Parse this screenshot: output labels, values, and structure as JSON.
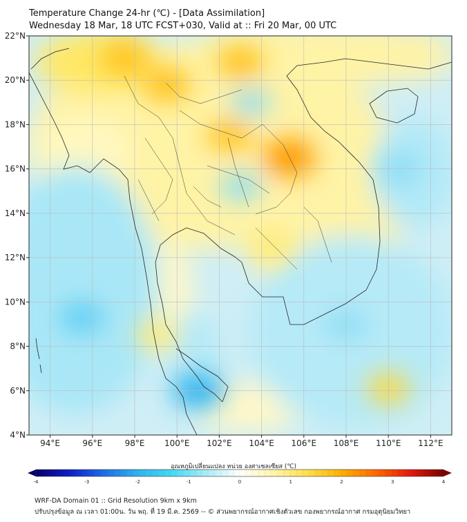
{
  "header": {
    "title": "Temperature Change 24-hr (℃) - [Data Assimilation]",
    "subtitle": "Wednesday 18 Mar, 18 UTC FCST+030, Valid at :: Fri 20 Mar, 00 UTC"
  },
  "map": {
    "lon_range": [
      93,
      113
    ],
    "lat_range": [
      4,
      22
    ],
    "lon_ticks": [
      "94°E",
      "96°E",
      "98°E",
      "100°E",
      "102°E",
      "104°E",
      "106°E",
      "108°E",
      "110°E",
      "112°E"
    ],
    "lon_values": [
      94,
      96,
      98,
      100,
      102,
      104,
      106,
      108,
      110,
      112
    ],
    "lat_ticks": [
      "22°N",
      "20°N",
      "18°N",
      "16°N",
      "14°N",
      "12°N",
      "10°N",
      "8°N",
      "6°N",
      "4°N"
    ],
    "lat_values": [
      22,
      20,
      18,
      16,
      14,
      12,
      10,
      8,
      6,
      4
    ],
    "warm_spots": [
      {
        "lon": 97.5,
        "lat": 21.0,
        "value": 1.4
      },
      {
        "lon": 99.5,
        "lat": 19.8,
        "value": 1.6
      },
      {
        "lon": 103.0,
        "lat": 20.8,
        "value": 1.5
      },
      {
        "lon": 102.5,
        "lat": 17.5,
        "value": 1.3
      },
      {
        "lon": 105.3,
        "lat": 16.5,
        "value": 2.0
      },
      {
        "lon": 104.5,
        "lat": 12.5,
        "value": 0.9
      },
      {
        "lon": 110.0,
        "lat": 6.1,
        "value": 1.0
      },
      {
        "lon": 99.0,
        "lat": 8.5,
        "value": 0.7
      }
    ],
    "cold_spots": [
      {
        "lon": 95.5,
        "lat": 9.3,
        "value": -1.0
      },
      {
        "lon": 101.0,
        "lat": 6.0,
        "value": -1.5
      },
      {
        "lon": 103.0,
        "lat": 15.2,
        "value": -0.7
      },
      {
        "lon": 110.5,
        "lat": 16.0,
        "value": -0.8
      },
      {
        "lon": 108.0,
        "lat": 9.0,
        "value": -0.7
      },
      {
        "lon": 103.5,
        "lat": 19.0,
        "value": -0.5
      }
    ]
  },
  "colorbar": {
    "title": "อุณหภูมิเปลี่ยนแปลง หน่วย องศาเซลเซียส (℃)",
    "ticks": [
      "-4",
      "-3",
      "-2",
      "-1",
      "0",
      "1",
      "2",
      "3",
      "4"
    ],
    "tick_values": [
      -4,
      -3,
      -2,
      -1,
      0,
      1,
      2,
      3,
      4
    ],
    "range": [
      -4,
      4
    ],
    "colors": [
      "#08006e",
      "#1020c8",
      "#1e6ee6",
      "#2fb4ee",
      "#45d9f5",
      "#a8ecf7",
      "#ffffff",
      "#fff6a8",
      "#ffe04a",
      "#ffb000",
      "#ff6a00",
      "#e81a0c",
      "#7e0000"
    ]
  },
  "footer": {
    "line1": "WRF-DA Domain 01 :: Grid Resolution 9km x 9km",
    "line2": "ปรับปรุงข้อมูล ณ เวลา 01:00น. วัน พฤ. ที่ 19 มี.ค. 2569 -- © ส่วนพยากรณ์อากาศเชิงตัวเลข กองพยากรณ์อากาศ กรมอุตุนิยมวิทยา"
  }
}
